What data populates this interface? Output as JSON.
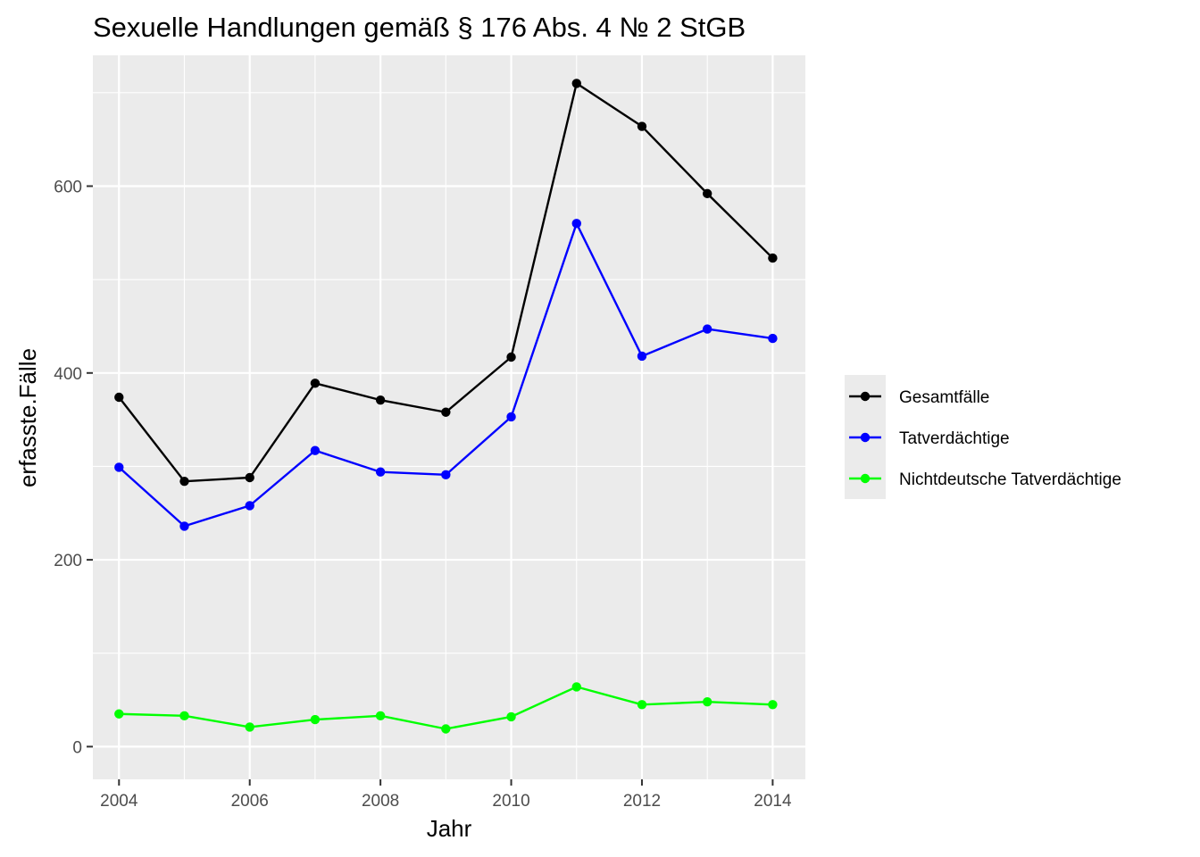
{
  "chart_data": {
    "type": "line",
    "title": "Sexuelle Handlungen gemäß § 176 Abs. 4 № 2 StGB",
    "xlabel": "Jahr",
    "ylabel": "erfasste.Fälle",
    "x": [
      2004,
      2005,
      2006,
      2007,
      2008,
      2009,
      2010,
      2011,
      2012,
      2013,
      2014
    ],
    "xlim": [
      2003.6,
      2014.5
    ],
    "ylim": [
      -35,
      740
    ],
    "x_ticks": [
      2004,
      2006,
      2008,
      2010,
      2012,
      2014
    ],
    "x_tick_labels": [
      "2004",
      "2006",
      "2008",
      "2010",
      "2012",
      "2014"
    ],
    "y_ticks": [
      0,
      200,
      400,
      600
    ],
    "y_tick_labels": [
      "0",
      "200",
      "400",
      "600"
    ],
    "grid": true,
    "legend_position": "right",
    "series": [
      {
        "name": "Gesamtfälle",
        "color": "#000000",
        "values": [
          374,
          284,
          288,
          389,
          371,
          358,
          417,
          710,
          664,
          592,
          523
        ]
      },
      {
        "name": "Tatverdächtige",
        "color": "#0000ff",
        "values": [
          299,
          236,
          258,
          317,
          294,
          291,
          353,
          560,
          418,
          447,
          437
        ]
      },
      {
        "name": "Nichtdeutsche Tatverdächtige",
        "color": "#00ff00",
        "values": [
          35,
          33,
          21,
          29,
          33,
          19,
          32,
          64,
          45,
          48,
          45
        ]
      }
    ]
  }
}
